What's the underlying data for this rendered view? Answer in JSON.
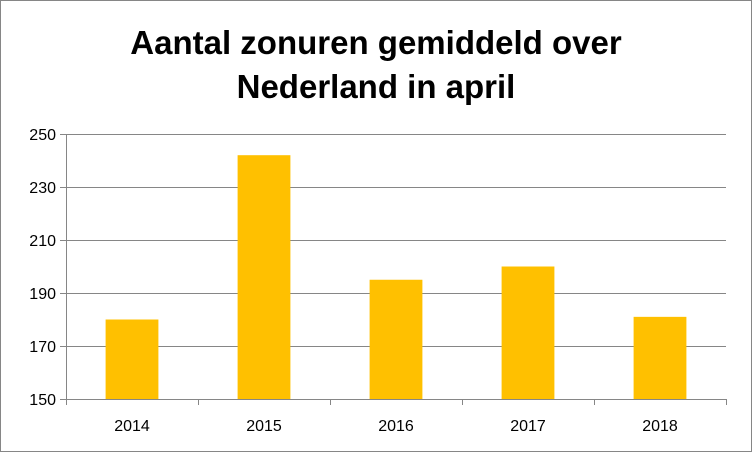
{
  "chart_data": {
    "type": "bar",
    "title_lines": [
      "Aantal zonuren gemiddeld over",
      "Nederland in april"
    ],
    "categories": [
      "2014",
      "2015",
      "2016",
      "2017",
      "2018"
    ],
    "values": [
      180,
      242,
      195,
      200,
      181
    ],
    "xlabel": "",
    "ylabel": "",
    "ylim": [
      150,
      250
    ],
    "yticks": [
      "150",
      "170",
      "190",
      "210",
      "230",
      "250"
    ],
    "grid": true,
    "legend": "none",
    "bar_color": "#FFC000",
    "grid_color": "#868686"
  }
}
